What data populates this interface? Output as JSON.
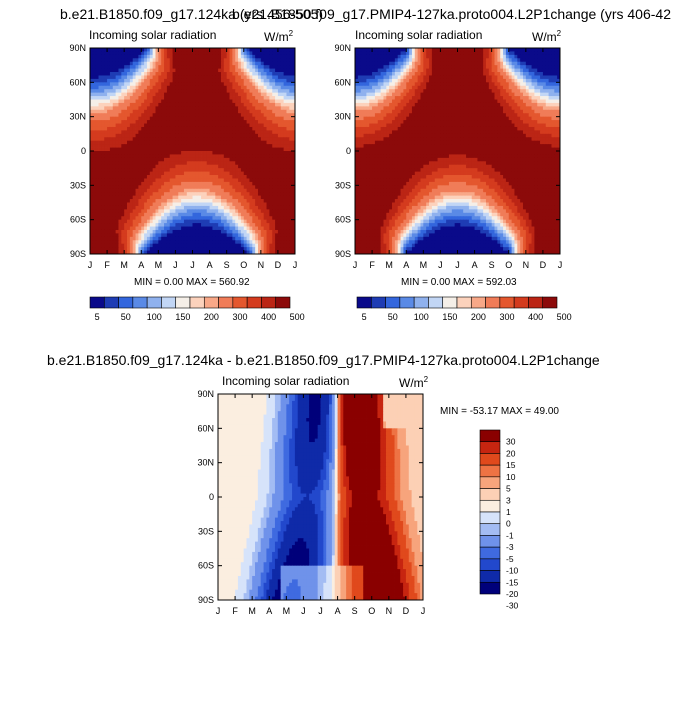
{
  "titles": {
    "left": "b.e21.B1850.f09_g17.124ka (yrs 456-505)",
    "right": "b.e21.B1850.f09_g17.PMIP4-127ka.proto004.L2P1change (yrs 406-42",
    "diff": "b.e21.B1850.f09_g17.124ka - b.e21.B1850.f09_g17.PMIP4-127ka.proto004.L2P1change"
  },
  "panel_label": "Incoming solar radiation",
  "units": "W/m",
  "units_sup": "2",
  "minmax": {
    "left": "MIN =   0.00 MAX = 560.92",
    "right": "MIN =   0.00 MAX = 592.03",
    "diff": "MIN = -53.17 MAX =  49.00"
  },
  "colors": {
    "abs": [
      "#0a0a8a",
      "#1e3cb4",
      "#3366dd",
      "#5a8ae6",
      "#8fb1ee",
      "#c2d6f5",
      "#f5efe8",
      "#fcd2bc",
      "#f8a888",
      "#f07c58",
      "#e4572e",
      "#d43b1e",
      "#bb2515",
      "#8c0a0a"
    ],
    "diff": [
      "#00007a",
      "#0f2aa8",
      "#2248cc",
      "#3f6ae0",
      "#6f92ea",
      "#a3bcf3",
      "#d6e3fa",
      "#fbeee0",
      "#fcd0b5",
      "#f7a47c",
      "#ee7344",
      "#e0491c",
      "#c72510",
      "#8a0000"
    ]
  },
  "chart_data": [
    {
      "type": "heatmap",
      "name": "left",
      "title": "b.e21.B1850.f09_g17.124ka (yrs 456-505)",
      "label": "Incoming solar radiation",
      "units": "W/m2",
      "x_ticks": [
        "J",
        "F",
        "M",
        "A",
        "M",
        "J",
        "J",
        "A",
        "S",
        "O",
        "N",
        "D",
        "J"
      ],
      "y_ticks": [
        "90N",
        "60N",
        "30N",
        "0",
        "30S",
        "60S",
        "90S"
      ],
      "y_values": [
        90,
        60,
        30,
        0,
        -30,
        -60,
        -90
      ],
      "min": 0.0,
      "max": 560.92,
      "peak_month_N": 5.7,
      "peak_month_S": 11.8,
      "colorbar_levels": [
        5,
        25,
        50,
        75,
        100,
        125,
        150,
        175,
        200,
        250,
        300,
        350,
        400,
        450,
        500,
        550
      ],
      "colorbar_labels": [
        "5",
        "50",
        "100",
        "150",
        "200",
        "300",
        "400",
        "500"
      ]
    },
    {
      "type": "heatmap",
      "name": "right",
      "title": "b.e21.B1850.f09_g17.PMIP4-127ka.proto004.L2P1change (yrs 406-42",
      "label": "Incoming solar radiation",
      "units": "W/m2",
      "x_ticks": [
        "J",
        "F",
        "M",
        "A",
        "M",
        "J",
        "J",
        "A",
        "S",
        "O",
        "N",
        "D",
        "J"
      ],
      "y_ticks": [
        "90N",
        "60N",
        "30N",
        "0",
        "30S",
        "60S",
        "90S"
      ],
      "y_values": [
        90,
        60,
        30,
        0,
        -30,
        -60,
        -90
      ],
      "min": 0.0,
      "max": 592.03,
      "peak_month_N": 6.0,
      "peak_month_S": 12.0,
      "colorbar_levels": [
        5,
        25,
        50,
        75,
        100,
        125,
        150,
        175,
        200,
        250,
        300,
        350,
        400,
        450,
        500,
        550
      ],
      "colorbar_labels": [
        "5",
        "50",
        "100",
        "150",
        "200",
        "300",
        "400",
        "500"
      ]
    },
    {
      "type": "heatmap",
      "name": "diff",
      "title": "b.e21.B1850.f09_g17.124ka - b.e21.B1850.f09_g17.PMIP4-127ka.proto004.L2P1change",
      "label": "Incoming solar radiation",
      "units": "W/m2",
      "x_ticks": [
        "J",
        "F",
        "M",
        "A",
        "M",
        "J",
        "J",
        "A",
        "S",
        "O",
        "N",
        "D",
        "J"
      ],
      "y_ticks": [
        "90N",
        "60N",
        "30N",
        "0",
        "30S",
        "60S",
        "90S"
      ],
      "y_values": [
        90,
        60,
        30,
        0,
        -30,
        -60,
        -90
      ],
      "min": -53.17,
      "max": 49.0,
      "colorbar_levels": [
        -30,
        -20,
        -15,
        -10,
        -5,
        -3,
        -1,
        0,
        1,
        3,
        5,
        10,
        15,
        20,
        30
      ],
      "colorbar_labels": [
        "30",
        "20",
        "15",
        "10",
        "5",
        "3",
        "1",
        "0",
        "-1",
        "-3",
        "-5",
        "-10",
        "-15",
        "-20",
        "-30"
      ]
    }
  ]
}
